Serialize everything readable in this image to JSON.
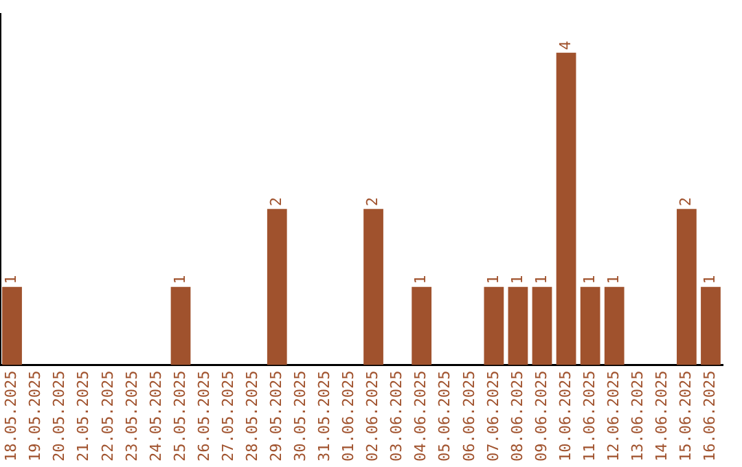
{
  "chart_data": {
    "type": "bar",
    "categories": [
      "18.05.2025",
      "19.05.2025",
      "20.05.2025",
      "21.05.2025",
      "22.05.2025",
      "23.05.2025",
      "24.05.2025",
      "25.05.2025",
      "26.05.2025",
      "27.05.2025",
      "28.05.2025",
      "29.05.2025",
      "30.05.2025",
      "31.05.2025",
      "01.06.2025",
      "02.06.2025",
      "03.06.2025",
      "04.06.2025",
      "05.06.2025",
      "06.06.2025",
      "07.06.2025",
      "08.06.2025",
      "09.06.2025",
      "10.06.2025",
      "11.06.2025",
      "12.06.2025",
      "13.06.2025",
      "14.06.2025",
      "15.06.2025",
      "16.06.2025"
    ],
    "values": [
      1,
      0,
      0,
      0,
      0,
      0,
      0,
      1,
      0,
      0,
      0,
      2,
      0,
      0,
      0,
      2,
      0,
      1,
      0,
      0,
      1,
      1,
      1,
      4,
      1,
      1,
      0,
      0,
      2,
      1
    ],
    "value_labels": [
      "1",
      null,
      null,
      null,
      null,
      null,
      null,
      "1",
      null,
      null,
      null,
      "2",
      null,
      null,
      null,
      "2",
      null,
      "1",
      null,
      null,
      "1",
      "1",
      "1",
      "4",
      "1",
      "1",
      null,
      null,
      "2",
      "1"
    ],
    "color": "#a0522d",
    "tick_labels": "x",
    "grid": false,
    "legend": false
  }
}
